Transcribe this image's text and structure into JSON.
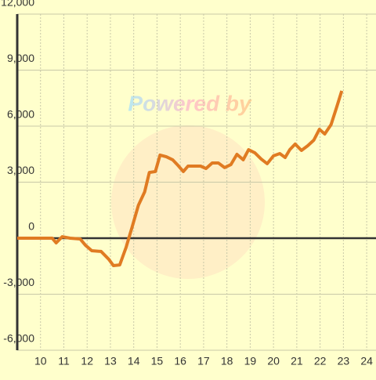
{
  "chart_data": {
    "type": "line",
    "watermark": "Powered by",
    "x": [
      9,
      10.5,
      10.67,
      10.93,
      11.27,
      11.7,
      11.93,
      12.2,
      12.6,
      12.93,
      13.13,
      13.4,
      13.67,
      13.93,
      14.2,
      14.47,
      14.67,
      14.93,
      15.13,
      15.4,
      15.67,
      15.87,
      16.13,
      16.33,
      16.6,
      16.87,
      17.1,
      17.37,
      17.63,
      17.9,
      18.17,
      18.43,
      18.7,
      18.93,
      19.2,
      19.47,
      19.73,
      20.0,
      20.27,
      20.5,
      20.7,
      20.93,
      21.2,
      21.47,
      21.73,
      21.97,
      22.2,
      22.47,
      22.7,
      22.93
    ],
    "series": [
      {
        "color": "#e07b22",
        "values": [
          0,
          0,
          -250,
          80,
          0,
          -40,
          -380,
          -670,
          -710,
          -1130,
          -1470,
          -1430,
          -500,
          590,
          1760,
          2480,
          3520,
          3570,
          4450,
          4360,
          4200,
          3940,
          3570,
          3860,
          3860,
          3860,
          3730,
          4030,
          4030,
          3780,
          3940,
          4490,
          4200,
          4740,
          4570,
          4240,
          3990,
          4410,
          4530,
          4320,
          4740,
          5040,
          4700,
          4950,
          5250,
          5830,
          5580,
          6080,
          6970,
          7890
        ]
      }
    ],
    "xlim": [
      9,
      24.4
    ],
    "xticks": [
      10,
      11,
      12,
      13,
      14,
      15,
      16,
      17,
      18,
      19,
      20,
      21,
      22,
      23,
      24
    ],
    "ylim": [
      -6000,
      12000
    ],
    "yticks": [
      {
        "value": -6000,
        "label": "-6,000"
      },
      {
        "value": -3000,
        "label": "-3,000"
      },
      0,
      {
        "value": 3000,
        "label": "3,000"
      },
      {
        "value": 6000,
        "label": "6,000"
      },
      {
        "value": 9000,
        "label": "9,000"
      },
      {
        "value": 12000,
        "label": "12,000"
      }
    ],
    "grid": true
  }
}
